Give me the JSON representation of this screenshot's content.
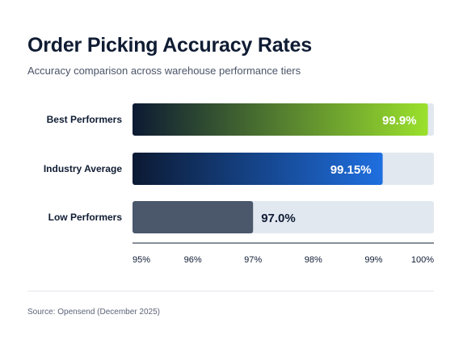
{
  "chart_data": {
    "type": "bar",
    "orientation": "horizontal",
    "title": "Order Picking Accuracy Rates",
    "subtitle": "Accuracy comparison across warehouse performance tiers",
    "categories": [
      "Best Performers",
      "Industry Average",
      "Low Performers"
    ],
    "values": [
      99.9,
      99.15,
      97.0
    ],
    "data_labels": [
      "99.9%",
      "99.15%",
      "97.0%"
    ],
    "xlim": [
      95,
      100
    ],
    "x_ticks": [
      "95%",
      "96%",
      "97%",
      "98%",
      "99%",
      "100%"
    ],
    "grid": false,
    "colors": {
      "best": [
        "#0c1a33",
        "#9be12c"
      ],
      "average": [
        "#0c1a33",
        "#1f6fe0"
      ],
      "low": "#4b576b",
      "track": "#e2e8f0"
    }
  },
  "source": "Source: Opensend (December 2025)"
}
